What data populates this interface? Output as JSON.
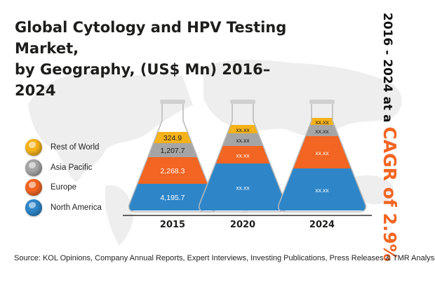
{
  "title_line1": "Global Cytology and HPV Testing Market,",
  "title_line2": "by Geography, (US$ Mn) 2016–2024",
  "cagr_prefix": "2016 - 2024 at a",
  "cagr_value": "CAGR of 2.9%",
  "source": "Source: KOL Opinions, Company Annual Reports, Expert Interviews, Investing Publications, Press Releases & TMR Analysis",
  "legend": [
    {
      "label": "Rest of World",
      "color": "#f5b21a"
    },
    {
      "label": "Asia Pacific",
      "color": "#a5a5a5"
    },
    {
      "label": "Europe",
      "color": "#f26522"
    },
    {
      "label": "North America",
      "color": "#2e86c9"
    }
  ],
  "chart_data": {
    "type": "bar",
    "stacked": true,
    "categories": [
      "2015",
      "2020",
      "2024"
    ],
    "series": [
      {
        "name": "North America",
        "color": "#2e86c9",
        "values": [
          4195.7,
          null,
          null
        ],
        "labels": [
          "4,195.7",
          "xx.xx",
          "xx.xx"
        ]
      },
      {
        "name": "Europe",
        "color": "#f26522",
        "values": [
          2268.3,
          null,
          null
        ],
        "labels": [
          "2,268.3",
          "xx.xx",
          "xx.xx"
        ]
      },
      {
        "name": "Asia Pacific",
        "color": "#a5a5a5",
        "values": [
          1207.7,
          null,
          null
        ],
        "labels": [
          "1,207.7",
          "xx.xx",
          "xx.xx"
        ]
      },
      {
        "name": "Rest of World",
        "color": "#f5b21a",
        "values": [
          324.9,
          null,
          null
        ],
        "labels": [
          "324.9",
          "xx.xx",
          "xx.xx"
        ]
      }
    ]
  }
}
